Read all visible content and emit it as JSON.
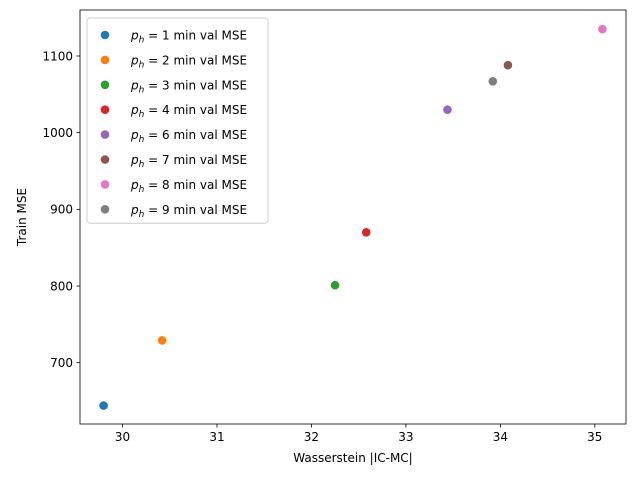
{
  "chart_data": {
    "type": "scatter",
    "xlabel": "Wasserstein |IC-MC|",
    "ylabel": "Train MSE",
    "xlim": [
      29.55,
      35.33
    ],
    "ylim": [
      620,
      1160
    ],
    "xticks": [
      30,
      31,
      32,
      33,
      34,
      35
    ],
    "yticks": [
      700,
      800,
      900,
      1000,
      1100
    ],
    "grid": false,
    "legend_position": "upper-left",
    "series": [
      {
        "name": "p_h = 1 min val MSE",
        "legend_var": "p",
        "legend_sub": "h",
        "legend_rest": " = 1 min val MSE",
        "color": "#1f77b4",
        "x": [
          29.8
        ],
        "y": [
          644
        ]
      },
      {
        "name": "p_h = 2 min val MSE",
        "legend_var": "p",
        "legend_sub": "h",
        "legend_rest": " = 2 min val MSE",
        "color": "#ff7f0e",
        "x": [
          30.42
        ],
        "y": [
          729
        ]
      },
      {
        "name": "p_h = 3 min val MSE",
        "legend_var": "p",
        "legend_sub": "h",
        "legend_rest": " = 3 min val MSE",
        "color": "#2ca02c",
        "x": [
          32.25
        ],
        "y": [
          801
        ]
      },
      {
        "name": "p_h = 4 min val MSE",
        "legend_var": "p",
        "legend_sub": "h",
        "legend_rest": " = 4 min val MSE",
        "color": "#d62728",
        "x": [
          32.58
        ],
        "y": [
          870
        ]
      },
      {
        "name": "p_h = 6 min val MSE",
        "legend_var": "p",
        "legend_sub": "h",
        "legend_rest": " = 6 min val MSE",
        "color": "#9467bd",
        "x": [
          33.44
        ],
        "y": [
          1030
        ]
      },
      {
        "name": "p_h = 7 min val MSE",
        "legend_var": "p",
        "legend_sub": "h",
        "legend_rest": " = 7 min val MSE",
        "color": "#8c564b",
        "x": [
          34.08
        ],
        "y": [
          1088
        ]
      },
      {
        "name": "p_h = 8 min val MSE",
        "legend_var": "p",
        "legend_sub": "h",
        "legend_rest": " = 8 min val MSE",
        "color": "#e377c2",
        "x": [
          35.08
        ],
        "y": [
          1135
        ]
      },
      {
        "name": "p_h = 9 min val MSE",
        "legend_var": "p",
        "legend_sub": "h",
        "legend_rest": " = 9 min val MSE",
        "color": "#7f7f7f",
        "x": [
          33.92
        ],
        "y": [
          1067
        ]
      }
    ]
  }
}
